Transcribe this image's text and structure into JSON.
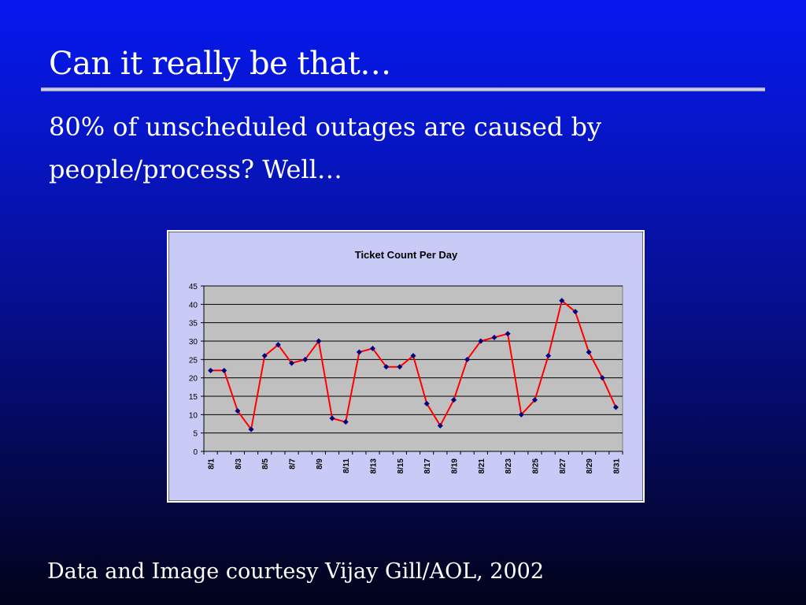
{
  "slide": {
    "title": "Can it really be that…",
    "body": "80% of unscheduled outages are caused by people/process? Well…",
    "footer": "Data and Image courtesy Vijay Gill/AOL, 2002"
  },
  "colors": {
    "chart_background": "#c8cbf5",
    "plot_area": "#c0c0c0",
    "line": "#ff0000",
    "marker": "#000080"
  },
  "chart_data": {
    "type": "line",
    "title": "Ticket Count Per Day",
    "xlabel": "",
    "ylabel": "",
    "ylim": [
      0,
      45
    ],
    "yticks": [
      0,
      5,
      10,
      15,
      20,
      25,
      30,
      35,
      40,
      45
    ],
    "grid": true,
    "x": [
      "8/1",
      "8/2",
      "8/3",
      "8/4",
      "8/5",
      "8/6",
      "8/7",
      "8/8",
      "8/9",
      "8/10",
      "8/11",
      "8/12",
      "8/13",
      "8/14",
      "8/15",
      "8/16",
      "8/17",
      "8/18",
      "8/19",
      "8/20",
      "8/21",
      "8/22",
      "8/23",
      "8/24",
      "8/25",
      "8/26",
      "8/27",
      "8/28",
      "8/29",
      "8/30",
      "8/31"
    ],
    "xtick_labels": [
      "8/1",
      "8/3",
      "8/5",
      "8/7",
      "8/9",
      "8/11",
      "8/13",
      "8/15",
      "8/17",
      "8/19",
      "8/21",
      "8/23",
      "8/25",
      "8/27",
      "8/29",
      "8/31"
    ],
    "values": [
      22,
      22,
      11,
      6,
      26,
      29,
      24,
      25,
      30,
      9,
      8,
      27,
      28,
      23,
      23,
      26,
      13,
      7,
      14,
      25,
      30,
      31,
      32,
      10,
      14,
      26,
      41,
      38,
      27,
      20,
      12
    ]
  }
}
